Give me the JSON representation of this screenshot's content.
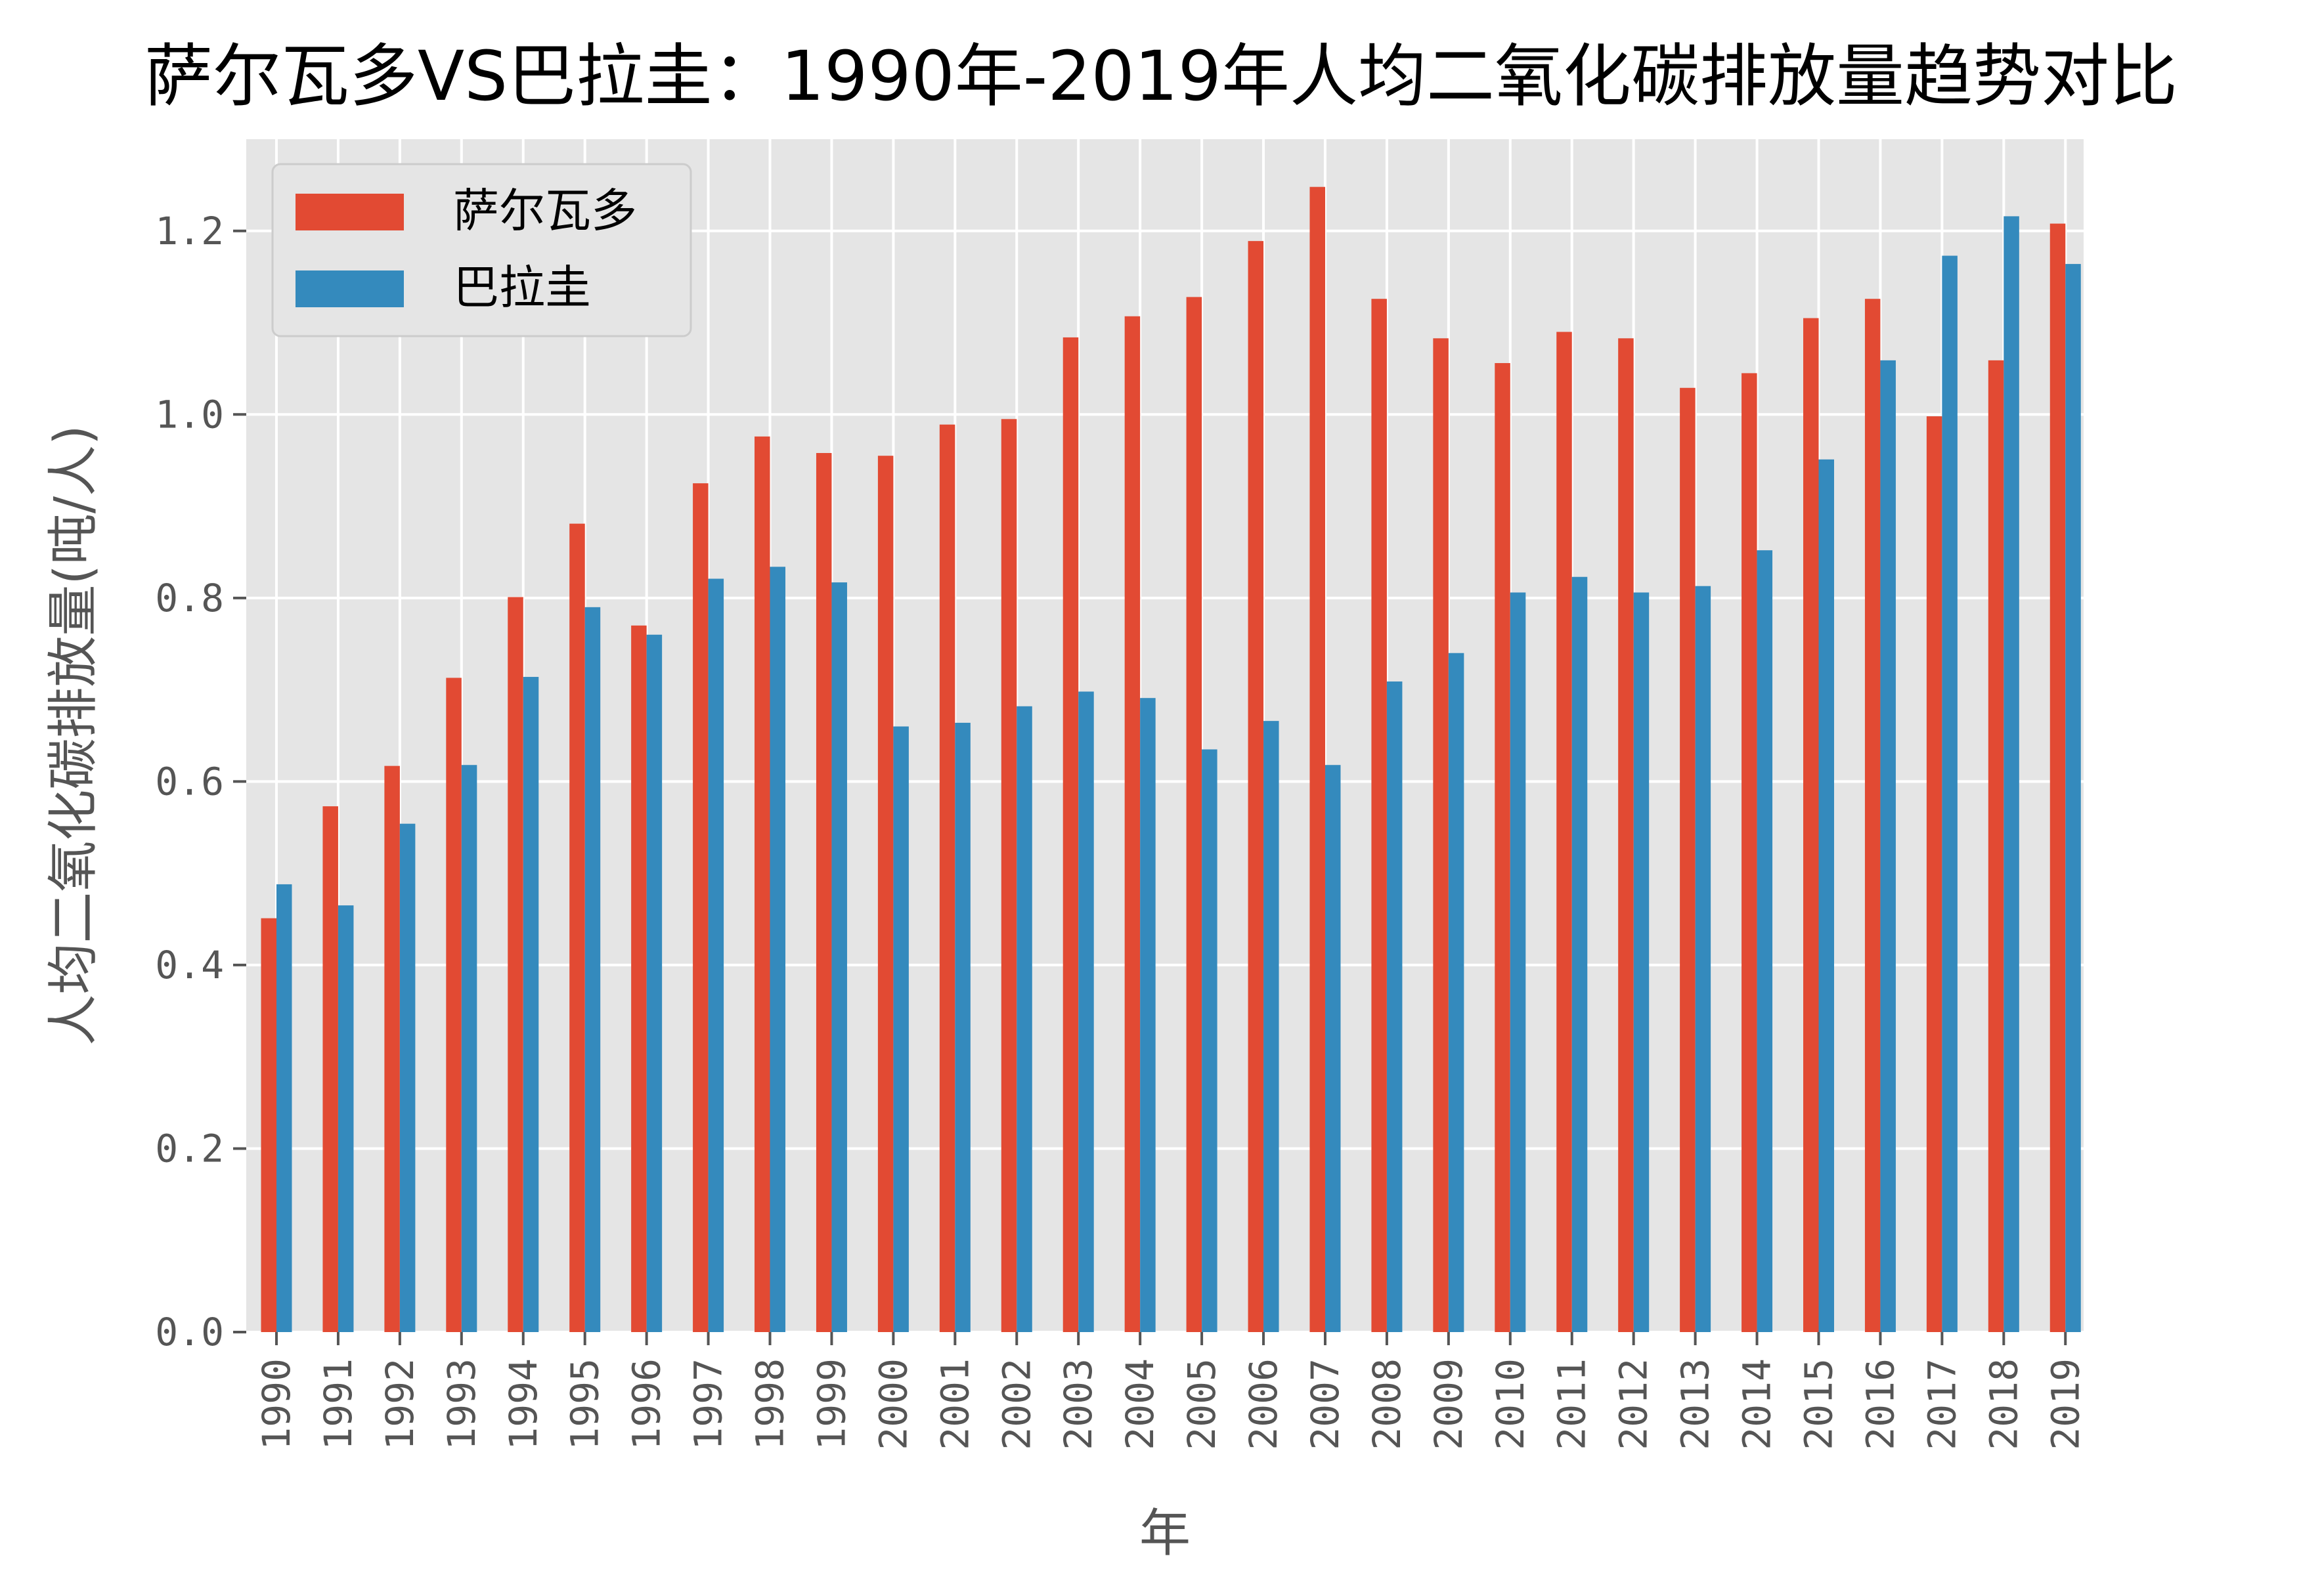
{
  "chart_data": {
    "type": "bar",
    "title": "萨尔瓦多VS巴拉圭：1990年-2019年人均二氧化碳排放量趋势对比",
    "xlabel": "年",
    "ylabel": "人均二氧化碳排放量(吨/人)",
    "ylim": [
      0,
      1.3
    ],
    "yticks": [
      "0.0",
      "0.2",
      "0.4",
      "0.6",
      "0.8",
      "1.0",
      "1.2"
    ],
    "ytick_values": [
      0,
      0.2,
      0.4,
      0.6,
      0.8,
      1.0,
      1.2
    ],
    "grid": true,
    "legend_position": "top-left",
    "categories": [
      "1990",
      "1991",
      "1992",
      "1993",
      "1994",
      "1995",
      "1996",
      "1997",
      "1998",
      "1999",
      "2000",
      "2001",
      "2002",
      "2003",
      "2004",
      "2005",
      "2006",
      "2007",
      "2008",
      "2009",
      "2010",
      "2011",
      "2012",
      "2013",
      "2014",
      "2015",
      "2016",
      "2017",
      "2018",
      "2019"
    ],
    "series": [
      {
        "name": "萨尔瓦多",
        "color": "#E24A33",
        "values": [
          0.451,
          0.573,
          0.617,
          0.713,
          0.801,
          0.881,
          0.77,
          0.925,
          0.976,
          0.958,
          0.955,
          0.989,
          0.995,
          1.084,
          1.107,
          1.128,
          1.189,
          1.248,
          1.126,
          1.083,
          1.056,
          1.09,
          1.083,
          1.029,
          1.045,
          1.105,
          1.126,
          0.998,
          1.059,
          1.208
        ]
      },
      {
        "name": "巴拉圭",
        "color": "#348ABD",
        "values": [
          0.488,
          0.465,
          0.554,
          0.618,
          0.714,
          0.79,
          0.76,
          0.821,
          0.834,
          0.817,
          0.66,
          0.664,
          0.682,
          0.698,
          0.691,
          0.635,
          0.666,
          0.618,
          0.709,
          0.74,
          0.806,
          0.823,
          0.806,
          0.813,
          0.852,
          0.951,
          1.059,
          1.173,
          1.216,
          1.164
        ]
      }
    ]
  }
}
